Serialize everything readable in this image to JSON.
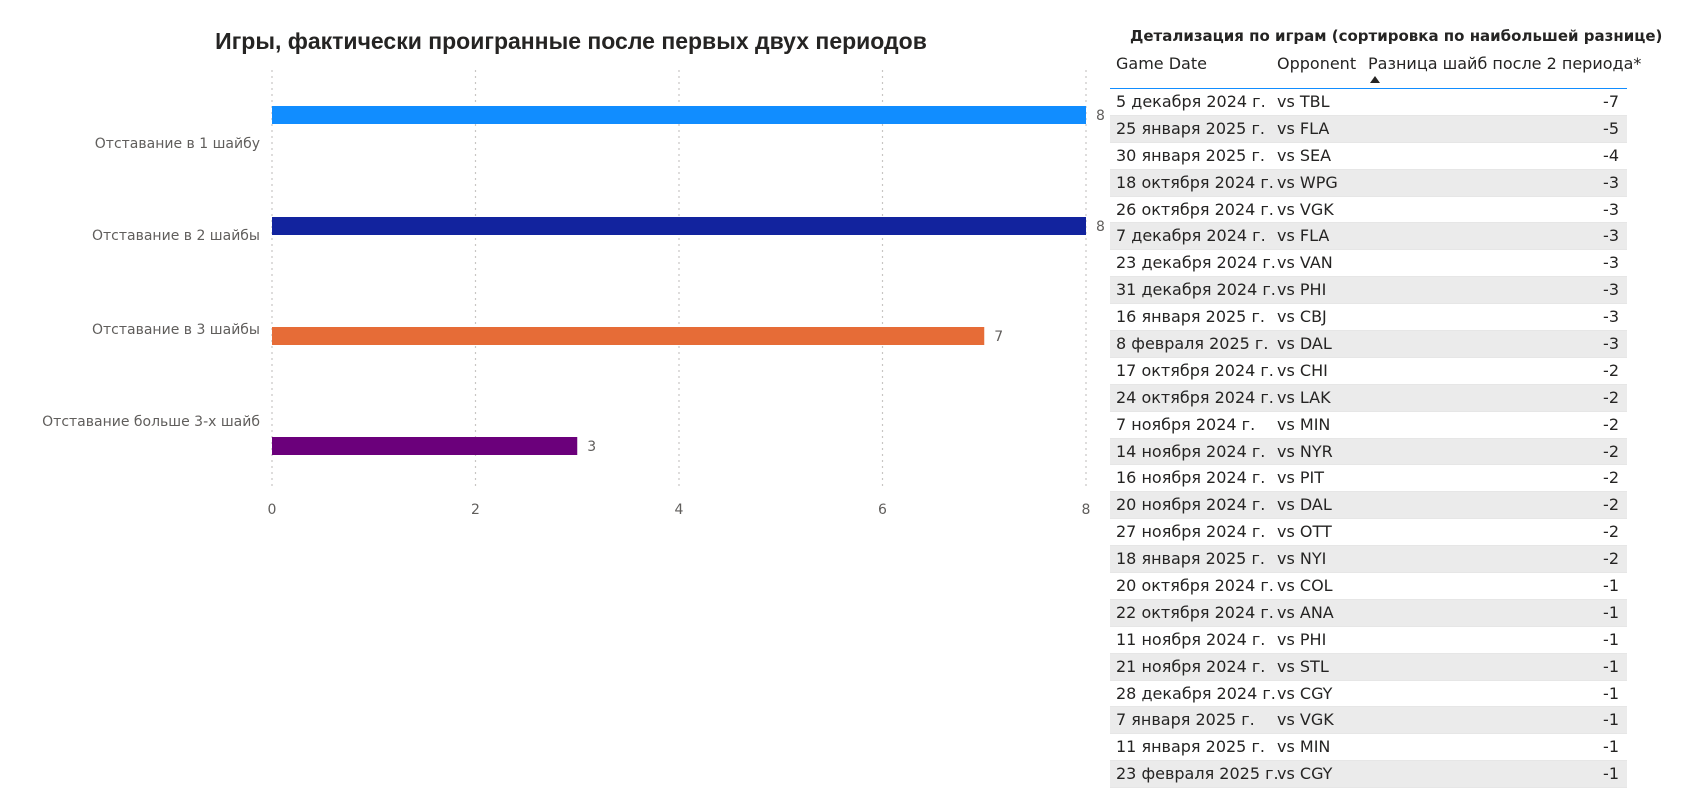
{
  "chart_data": {
    "type": "bar",
    "orientation": "horizontal",
    "title": "Игры, фактически проигранные после первых двух периодов",
    "categories": [
      "Отставание в 1 шайбу",
      "Отставание в 2 шайбы",
      "Отставание в 3 шайбы",
      "Отставание больше 3-х шайб"
    ],
    "values": [
      8,
      8,
      7,
      3
    ],
    "colors": [
      "#118dff",
      "#12239e",
      "#e66c37",
      "#6b007b"
    ],
    "xlim": [
      0,
      8
    ],
    "xticks": [
      "0",
      "2",
      "4",
      "6",
      "8"
    ],
    "grid": true,
    "data_labels": true
  },
  "table": {
    "title": "Детализация по играм (сортировка по наибольшей разнице)",
    "columns": [
      "Game Date",
      "Opponent",
      "Разница шайб после 2 периода*"
    ],
    "sort": "ascending",
    "rows": [
      [
        "5 декабря 2024 г.",
        "vs TBL",
        "-7"
      ],
      [
        "25 января 2025 г.",
        "vs FLA",
        "-5"
      ],
      [
        "30 января 2025 г.",
        "vs SEA",
        "-4"
      ],
      [
        "18 октября 2024 г.",
        "vs WPG",
        "-3"
      ],
      [
        "26 октября 2024 г.",
        "vs VGK",
        "-3"
      ],
      [
        "7 декабря 2024 г.",
        "vs FLA",
        "-3"
      ],
      [
        "23 декабря 2024 г.",
        "vs VAN",
        "-3"
      ],
      [
        "31 декабря 2024 г.",
        "vs PHI",
        "-3"
      ],
      [
        "16 января 2025 г.",
        "vs CBJ",
        "-3"
      ],
      [
        "8 февраля 2025 г.",
        "vs DAL",
        "-3"
      ],
      [
        "17 октября 2024 г.",
        "vs CHI",
        "-2"
      ],
      [
        "24 октября 2024 г.",
        "vs LAK",
        "-2"
      ],
      [
        "7 ноября 2024 г.",
        "vs MIN",
        "-2"
      ],
      [
        "14 ноября 2024 г.",
        "vs NYR",
        "-2"
      ],
      [
        "16 ноября 2024 г.",
        "vs PIT",
        "-2"
      ],
      [
        "20 ноября 2024 г.",
        "vs DAL",
        "-2"
      ],
      [
        "27 ноября 2024 г.",
        "vs OTT",
        "-2"
      ],
      [
        "18 января 2025 г.",
        "vs NYI",
        "-2"
      ],
      [
        "20 октября 2024 г.",
        "vs COL",
        "-1"
      ],
      [
        "22 октября 2024 г.",
        "vs ANA",
        "-1"
      ],
      [
        "11 ноября 2024 г.",
        "vs PHI",
        "-1"
      ],
      [
        "21 ноября 2024 г.",
        "vs STL",
        "-1"
      ],
      [
        "28 декабря 2024 г.",
        "vs CGY",
        "-1"
      ],
      [
        "7 января 2025 г.",
        "vs VGK",
        "-1"
      ],
      [
        "11 января 2025 г.",
        "vs MIN",
        "-1"
      ],
      [
        "23 февраля 2025 г.",
        "vs CGY",
        "-1"
      ]
    ]
  }
}
